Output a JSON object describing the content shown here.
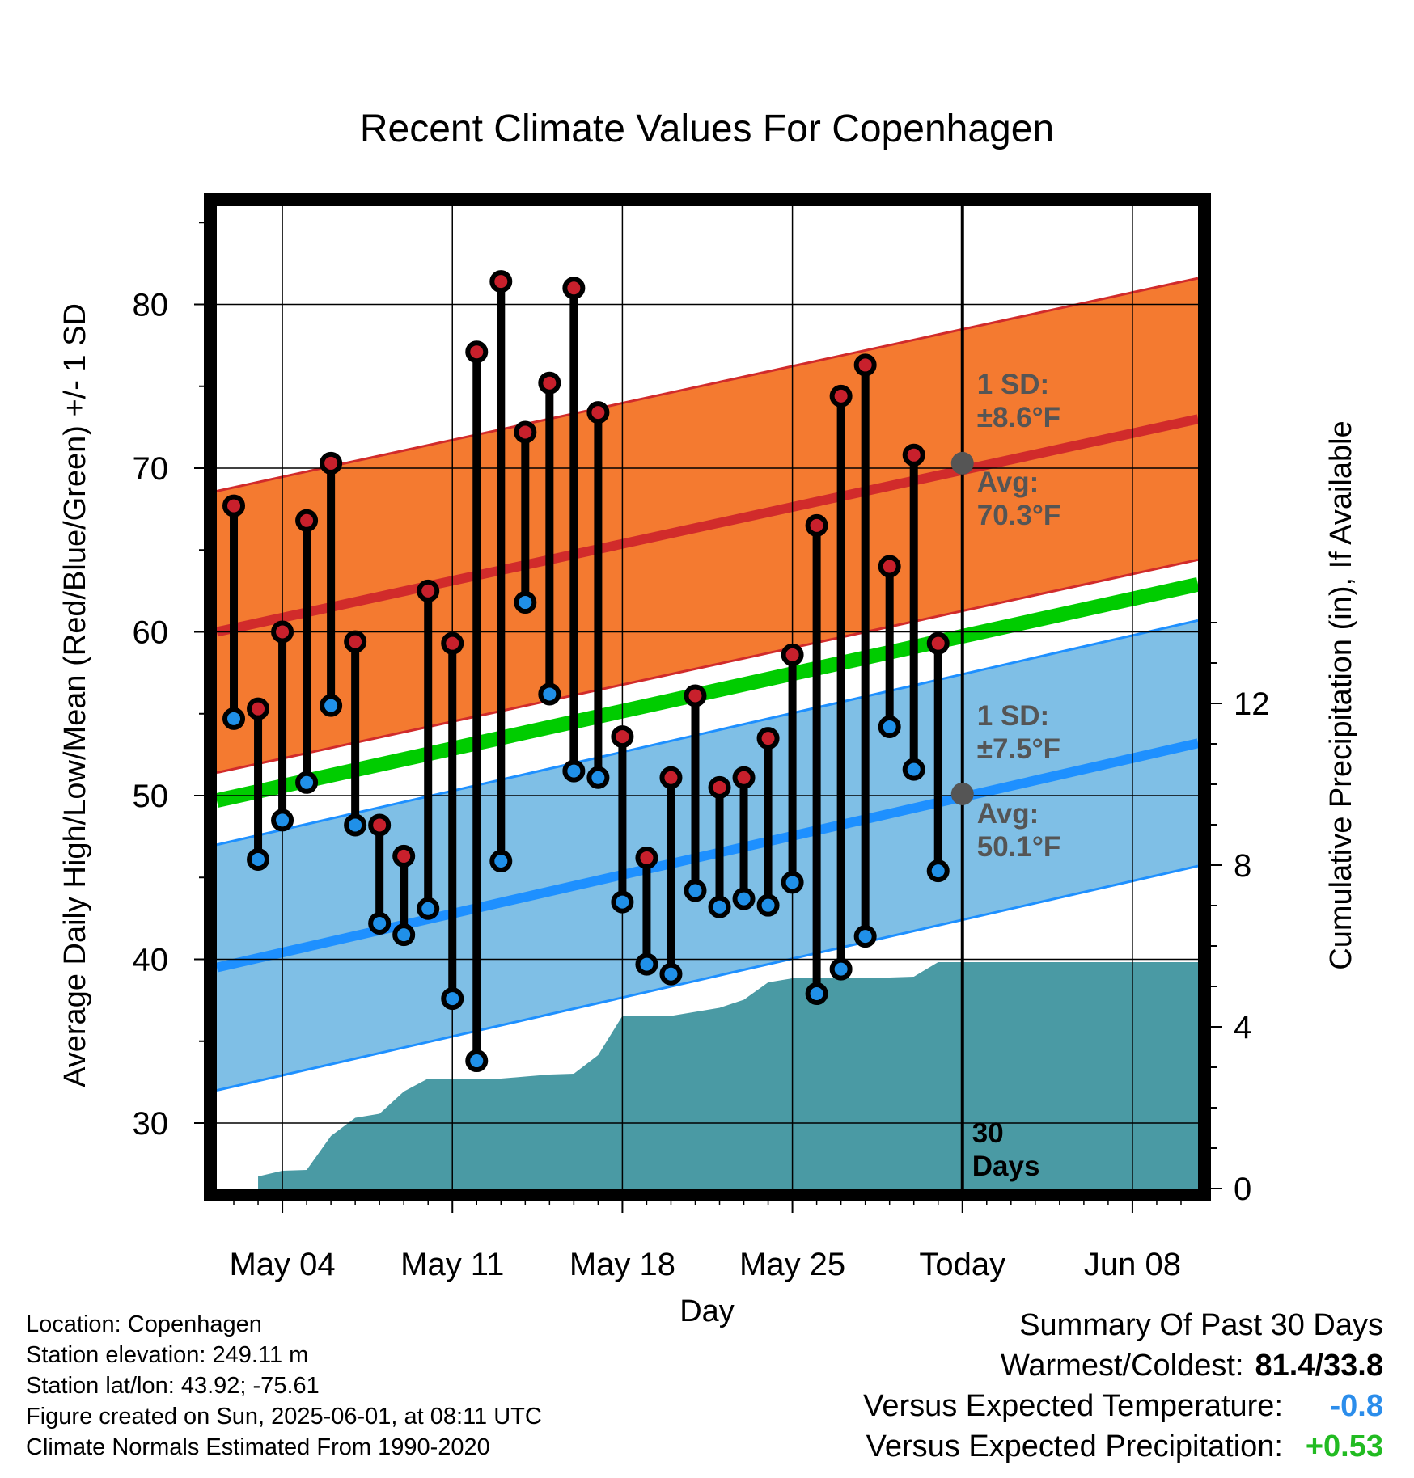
{
  "chart_data": {
    "type": "range-bar",
    "title": "Recent Climate Values For Copenhagen",
    "xlabel": "Day",
    "ylabel_left": "Average Daily High/Low/Mean (Red/Blue/Green) +/- 1 SD",
    "ylabel_right": "Cumulative Precipitation (in), If Available",
    "x_tick_labels": [
      "May 04",
      "May 11",
      "May 18",
      "May 25",
      "Today",
      "Jun 08"
    ],
    "x_tick_days": [
      4,
      11,
      18,
      25,
      32,
      39
    ],
    "xlim_days": [
      1.3,
      41.7
    ],
    "y_left_ticks": [
      30,
      40,
      50,
      60,
      70,
      80
    ],
    "y_left_range": [
      26,
      86
    ],
    "y_right_ticks": [
      0,
      4,
      8,
      12
    ],
    "y_right_range": [
      0,
      24.3
    ],
    "today_day": 32,
    "today_label": [
      "30",
      "Days"
    ],
    "observed": [
      {
        "day": 2,
        "high": 67.7,
        "low": 54.7
      },
      {
        "day": 3,
        "high": 55.3,
        "low": 46.1
      },
      {
        "day": 4,
        "high": 60.0,
        "low": 48.5
      },
      {
        "day": 5,
        "high": 66.8,
        "low": 50.8
      },
      {
        "day": 6,
        "high": 70.3,
        "low": 55.5
      },
      {
        "day": 7,
        "high": 59.4,
        "low": 48.2
      },
      {
        "day": 8,
        "high": 48.2,
        "low": 42.2
      },
      {
        "day": 9,
        "high": 46.3,
        "low": 41.5
      },
      {
        "day": 10,
        "high": 62.5,
        "low": 43.1
      },
      {
        "day": 11,
        "high": 59.3,
        "low": 37.6
      },
      {
        "day": 12,
        "high": 77.1,
        "low": 33.8
      },
      {
        "day": 13,
        "high": 81.4,
        "low": 46.0
      },
      {
        "day": 14,
        "high": 72.2,
        "low": 61.8
      },
      {
        "day": 15,
        "high": 75.2,
        "low": 56.2
      },
      {
        "day": 16,
        "high": 81.0,
        "low": 51.5
      },
      {
        "day": 17,
        "high": 73.4,
        "low": 51.1
      },
      {
        "day": 18,
        "high": 53.6,
        "low": 43.5
      },
      {
        "day": 19,
        "high": 46.2,
        "low": 39.7
      },
      {
        "day": 20,
        "high": 51.1,
        "low": 39.1
      },
      {
        "day": 21,
        "high": 56.1,
        "low": 44.2
      },
      {
        "day": 22,
        "high": 50.5,
        "low": 43.2
      },
      {
        "day": 23,
        "high": 51.1,
        "low": 43.7
      },
      {
        "day": 24,
        "high": 53.5,
        "low": 43.3
      },
      {
        "day": 25,
        "high": 58.6,
        "low": 44.7
      },
      {
        "day": 26,
        "high": 66.5,
        "low": 37.9
      },
      {
        "day": 27,
        "high": 74.4,
        "low": 39.4
      },
      {
        "day": 28,
        "high": 76.3,
        "low": 41.4
      },
      {
        "day": 29,
        "high": 64.0,
        "low": 54.2
      },
      {
        "day": 30,
        "high": 70.8,
        "low": 51.6
      },
      {
        "day": 31,
        "high": 59.3,
        "low": 45.4
      }
    ],
    "normal_high": {
      "start": 60.0,
      "end": 73.0,
      "sd": 8.6,
      "sd_label": [
        "1 SD:",
        "±8.6°F"
      ],
      "avg_label": [
        "Avg:",
        "70.3°F"
      ],
      "today_value": 70.3
    },
    "normal_low": {
      "start": 39.5,
      "end": 53.2,
      "sd": 7.5,
      "sd_label": [
        "1 SD:",
        "±7.5°F"
      ],
      "avg_label": [
        "Avg:",
        "50.1°F"
      ],
      "today_value": 50.1
    },
    "normal_mean": {
      "start": 49.7,
      "end": 62.9
    },
    "cumulative_precip": {
      "days": [
        3.0,
        4.0,
        5.0,
        6.0,
        7.0,
        8.0,
        9.0,
        10.0,
        11.0,
        12.0,
        13.0,
        14.0,
        15.0,
        16.0,
        17.0,
        18.0,
        19.0,
        20.0,
        21.0,
        22.0,
        23.0,
        24.0,
        25.0,
        26.0,
        27.0,
        28.0,
        29.0,
        30.0,
        31.0,
        32.0,
        41.7
      ],
      "values": [
        0.3,
        0.44,
        0.46,
        1.3,
        1.75,
        1.85,
        2.4,
        2.72,
        2.72,
        2.72,
        2.72,
        2.77,
        2.82,
        2.84,
        3.3,
        4.27,
        4.27,
        4.27,
        4.37,
        4.47,
        4.67,
        5.1,
        5.2,
        5.2,
        5.2,
        5.2,
        5.22,
        5.24,
        5.6,
        5.6,
        5.6
      ]
    },
    "colors": {
      "high_band": "#F47A30",
      "high_line": "#D12B2B",
      "low_band": "#7FBFE6",
      "low_line": "#1E90FF",
      "mean_line": "#00CC00",
      "precip": "#4A9AA4",
      "high_dot": "#C8202C",
      "low_dot": "#2090E8"
    }
  },
  "footer": {
    "location": "Location: Copenhagen",
    "elevation": "Station elevation: 249.11 m",
    "latlon": "Station lat/lon: 43.92; -75.61",
    "created": "Figure created on Sun, 2025-06-01, at 08:11 UTC",
    "normals": "Climate Normals Estimated From 1990-2020"
  },
  "summary": {
    "heading": "Summary Of Past 30 Days",
    "warmest_label": "Warmest/Coldest:",
    "warmest_value": "81.4/33.8",
    "temp_label": "Versus Expected Temperature:",
    "temp_value": "-0.8",
    "temp_color": "#2B8DEB",
    "precip_label": "Versus Expected Precipitation:",
    "precip_value": "+0.53",
    "precip_color": "#22BB22"
  }
}
